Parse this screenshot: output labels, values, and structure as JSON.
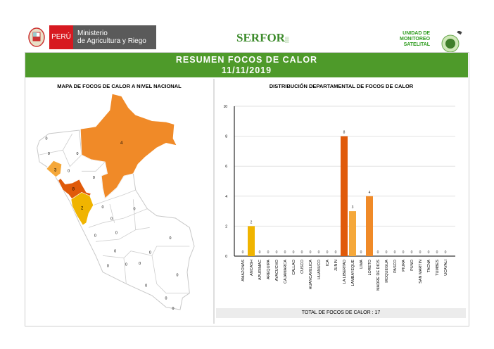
{
  "header": {
    "country": "PERÚ",
    "ministry_line1": "Ministerio",
    "ministry_line2": "de Agricultura y Riego",
    "serfor": "SERFOR",
    "unit_line1": "UNIDAD DE",
    "unit_line2": "MONITOREO",
    "unit_line3": "SATELITAL"
  },
  "banner": {
    "title": "RESUMEN FOCOS DE CALOR",
    "date": "11/11/2019"
  },
  "map": {
    "title": "MAPA DE FOCOS DE CALOR A NIVEL NACIONAL",
    "regions": [
      {
        "name": "Loreto",
        "value": "4",
        "color": "#f08a28"
      },
      {
        "name": "La Libertad",
        "value": "8",
        "color": "#e05a0a"
      },
      {
        "name": "Lambayeque",
        "value": "3",
        "color": "#f5a83a"
      },
      {
        "name": "Ancash",
        "value": "2",
        "color": "#f0b400"
      }
    ],
    "zero_label": "0"
  },
  "chart_data": {
    "type": "bar",
    "title": "DISTRIBUCIÓN DEPARTAMENTAL DE FOCOS DE CALOR",
    "categories": [
      "AMAZONAS",
      "ANCASH",
      "APURIMAC",
      "AREQUIPA",
      "AYACUCHO",
      "CAJAMARCA",
      "CALLAO",
      "CUSCO",
      "HUANCAVELICA",
      "HUANUCO",
      "ICA",
      "JUNIN",
      "LA LIBERTAD",
      "LAMBAYEQUE",
      "LIMA",
      "LORETO",
      "MADRE DE DIOS",
      "MOQUEGUA",
      "PASCO",
      "PIURA",
      "PUNO",
      "SAN MARTIN",
      "TACNA",
      "TUMBES",
      "UCAYALI"
    ],
    "values": [
      0,
      2,
      0,
      0,
      0,
      0,
      0,
      0,
      0,
      0,
      0,
      0,
      8,
      3,
      0,
      4,
      0,
      0,
      0,
      0,
      0,
      0,
      0,
      0,
      0
    ],
    "colors": {
      "ANCASH": "#f0b400",
      "LA LIBERTAD": "#e05a0a",
      "LAMBAYEQUE": "#f5a83a",
      "LORETO": "#f08a28"
    },
    "ylim": [
      0,
      10
    ],
    "yticks": [
      0,
      2,
      4,
      6,
      8,
      10
    ],
    "grid": true,
    "xlabel": "",
    "ylabel": ""
  },
  "footer": {
    "total": "TOTAL DE FOCOS DE CALOR : 17"
  }
}
